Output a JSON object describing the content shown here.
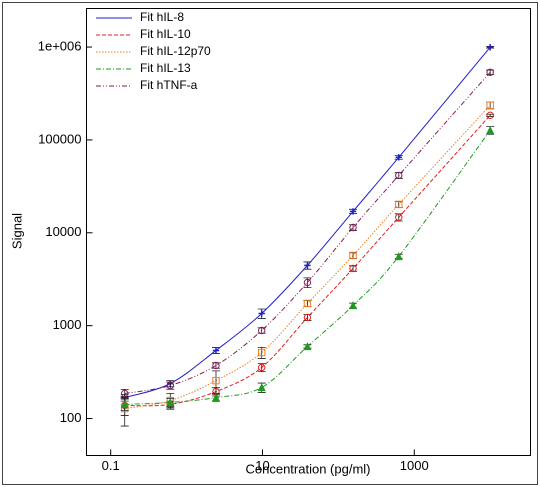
{
  "chart_data": {
    "type": "scatter",
    "xlabel": "Concentration (pg/ml)",
    "ylabel": "Signal",
    "xscale": "log",
    "yscale": "log",
    "xlim": [
      0.048,
      34000
    ],
    "ylim": [
      40,
      2600000
    ],
    "xticks": [
      0.1,
      10,
      1000
    ],
    "yticks": [
      100,
      1000,
      10000,
      100000,
      {
        "value": 1000000,
        "label": "1e+006"
      }
    ],
    "legend": "upper left",
    "x": [
      0.153,
      0.61,
      2.44,
      9.77,
      39.1,
      156,
      625,
      10000
    ],
    "series": [
      {
        "name": "Fit hIL-8",
        "color": "#1f1fd0",
        "linestyle": "solid",
        "marker": "plus",
        "values": [
          168,
          238,
          541,
          1353,
          4456,
          17000,
          65000,
          995000
        ],
        "errors": [
          14,
          18,
          40,
          160,
          400,
          900,
          3000,
          20000
        ]
      },
      {
        "name": "Fit hIL-10",
        "color": "#e02020",
        "linestyle": "dashed",
        "marker": "circle",
        "values": [
          138,
          142,
          195,
          355,
          1225,
          4130,
          14700,
          184000
        ],
        "errors": [
          30,
          12,
          20,
          35,
          90,
          280,
          1300,
          5000
        ]
      },
      {
        "name": "Fit hIL-12p70",
        "color": "#f08020",
        "linestyle": "dotted",
        "marker": "square",
        "values": [
          128,
          156,
          256,
          514,
          1734,
          5700,
          20200,
          236000
        ],
        "errors": [
          45,
          30,
          70,
          70,
          130,
          400,
          1500,
          20000
        ]
      },
      {
        "name": "Fit hIL-13",
        "color": "#1e9a1e",
        "linestyle": "dashdot",
        "marker": "triangle",
        "values": [
          142,
          149,
          168,
          216,
          597,
          1650,
          5570,
          127000
        ],
        "errors": [
          20,
          15,
          15,
          25,
          25,
          100,
          300,
          12000
        ]
      },
      {
        "name": "Fit hTNF-a",
        "color": "#8a1a5a",
        "linestyle": "dashdotdot",
        "marker": "circle",
        "values": [
          186,
          227,
          373,
          888,
          2920,
          11400,
          41500,
          535000
        ],
        "errors": [
          20,
          20,
          25,
          60,
          350,
          800,
          3000,
          30000
        ]
      }
    ]
  }
}
